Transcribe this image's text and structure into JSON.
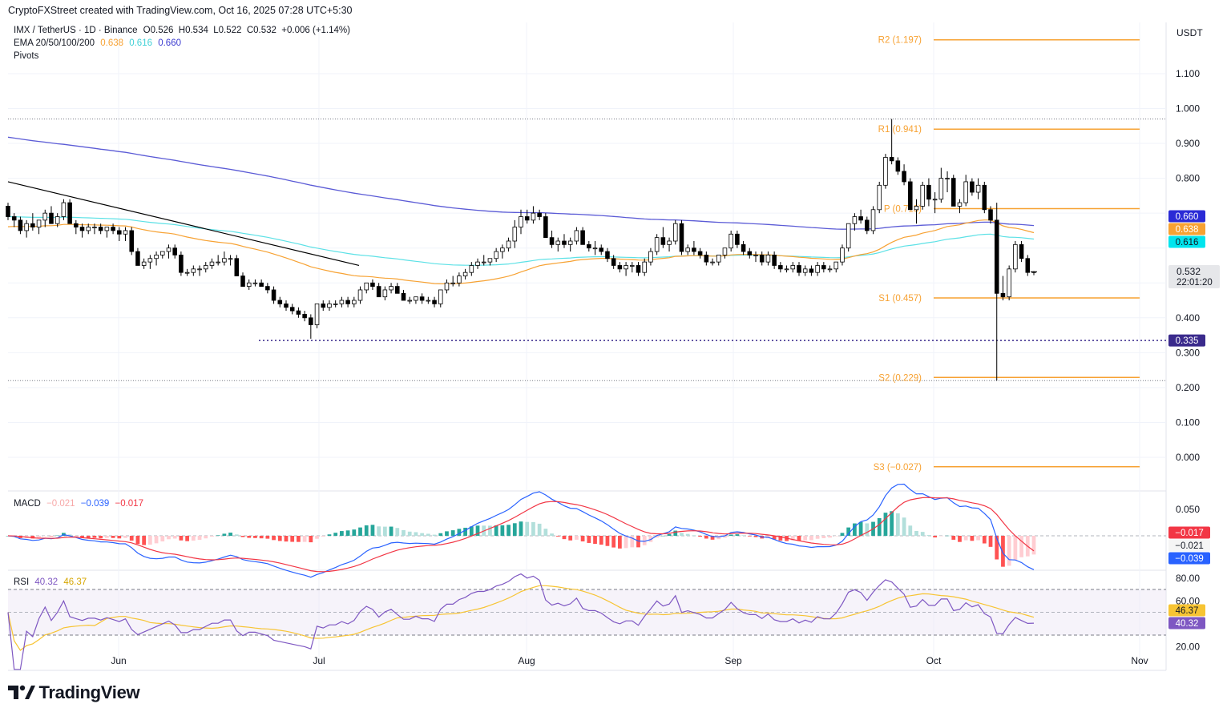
{
  "header": {
    "credit": "CryptoFXStreet created with TradingView.com, Oct 16, 2025 07:28 UTC+5:30"
  },
  "legend": {
    "symbol": "IMX / TetherUS · 1D · Binance",
    "ohlc": "O0.526  H0.534  L0.522  C0.532  +0.006 (+1.14%)",
    "ema_label": "EMA 20/50/100/200",
    "ema_values": [
      "0.638",
      "0.616",
      "0.660"
    ],
    "pivots_label": "Pivots"
  },
  "currency": "USDT",
  "price_axis_ticks": [
    "1.100",
    "1.000",
    "0.900",
    "0.800",
    "0.400",
    "0.300",
    "0.200",
    "0.100",
    "0.000"
  ],
  "time_axis_labels": [
    "Jun",
    "Jul",
    "Aug",
    "Sep",
    "Oct",
    "Nov"
  ],
  "pivot_labels": [
    "R2 (1.197)",
    "R1 (0.941)",
    "P (0.713)",
    "S1 (0.457)",
    "S2 (0.229)",
    "S3 (−0.027)"
  ],
  "price_tags": {
    "ema200": "0.660",
    "ema20": "0.638",
    "ema50": "0.616",
    "last": "0.532",
    "countdown": "22:01:20",
    "low_marker": "0.335"
  },
  "macd": {
    "label": "MACD",
    "values": [
      "−0.021",
      "−0.039",
      "−0.017"
    ],
    "axis_ticks": [
      "0.050"
    ],
    "tags": [
      "−0.017",
      "−0.021",
      "−0.039"
    ]
  },
  "rsi": {
    "label": "RSI",
    "values": [
      "40.32",
      "46.37"
    ],
    "axis_ticks": [
      "80.00",
      "60.00",
      "20.00"
    ],
    "tags": [
      "46.37",
      "40.32"
    ]
  },
  "footer": {
    "brand": "TradingView"
  },
  "colors": {
    "up": "#ffffff",
    "down": "#000000",
    "ema20": "#f7a233",
    "ema50": "#5ce1e6",
    "ema200": "#5b5bd6",
    "pivot": "#f7a233",
    "macd": "#2962ff",
    "signal": "#f23645",
    "rsi": "#7e57c2",
    "rsi_ma": "#f7c433",
    "trend": "#000000"
  },
  "chart_data": {
    "type": "candlestick",
    "title": "IMX / TetherUS · 1D · Binance",
    "x_labels": [
      "Jun",
      "Jul",
      "Aug",
      "Sep",
      "Oct",
      "Nov"
    ],
    "y_range": [
      -0.1,
      1.25
    ],
    "pivots": {
      "R2": 1.197,
      "R1": 0.941,
      "P": 0.713,
      "S1": 0.457,
      "S2": 0.229,
      "S3": -0.027
    },
    "horizontal_levels": [
      0.335,
      0.97,
      0.22
    ],
    "trendline": [
      [
        0,
        0.79
      ],
      [
        101,
        0.55
      ]
    ],
    "candles": [
      [
        0.72,
        0.73,
        0.68,
        0.69
      ],
      [
        0.69,
        0.7,
        0.66,
        0.68
      ],
      [
        0.68,
        0.69,
        0.64,
        0.65
      ],
      [
        0.65,
        0.68,
        0.63,
        0.67
      ],
      [
        0.67,
        0.7,
        0.65,
        0.66
      ],
      [
        0.66,
        0.68,
        0.64,
        0.68
      ],
      [
        0.68,
        0.71,
        0.66,
        0.7
      ],
      [
        0.7,
        0.72,
        0.67,
        0.67
      ],
      [
        0.67,
        0.7,
        0.66,
        0.69
      ],
      [
        0.69,
        0.74,
        0.68,
        0.73
      ],
      [
        0.73,
        0.74,
        0.67,
        0.67
      ],
      [
        0.67,
        0.68,
        0.64,
        0.66
      ],
      [
        0.66,
        0.67,
        0.63,
        0.65
      ],
      [
        0.65,
        0.67,
        0.64,
        0.66
      ],
      [
        0.66,
        0.67,
        0.64,
        0.66
      ],
      [
        0.66,
        0.67,
        0.64,
        0.65
      ],
      [
        0.65,
        0.66,
        0.63,
        0.66
      ],
      [
        0.66,
        0.67,
        0.64,
        0.65
      ],
      [
        0.65,
        0.66,
        0.62,
        0.64
      ],
      [
        0.64,
        0.66,
        0.62,
        0.65
      ],
      [
        0.65,
        0.66,
        0.58,
        0.59
      ],
      [
        0.59,
        0.6,
        0.55,
        0.55
      ],
      [
        0.55,
        0.57,
        0.54,
        0.56
      ],
      [
        0.56,
        0.58,
        0.54,
        0.57
      ],
      [
        0.57,
        0.59,
        0.55,
        0.58
      ],
      [
        0.58,
        0.59,
        0.57,
        0.59
      ],
      [
        0.59,
        0.61,
        0.57,
        0.6
      ],
      [
        0.6,
        0.61,
        0.57,
        0.58
      ],
      [
        0.58,
        0.59,
        0.52,
        0.53
      ],
      [
        0.53,
        0.54,
        0.52,
        0.53
      ],
      [
        0.53,
        0.55,
        0.52,
        0.54
      ],
      [
        0.54,
        0.55,
        0.52,
        0.54
      ],
      [
        0.54,
        0.56,
        0.53,
        0.55
      ],
      [
        0.55,
        0.57,
        0.54,
        0.56
      ],
      [
        0.56,
        0.58,
        0.55,
        0.56
      ],
      [
        0.56,
        0.59,
        0.55,
        0.57
      ],
      [
        0.57,
        0.58,
        0.55,
        0.57
      ],
      [
        0.57,
        0.58,
        0.52,
        0.52
      ],
      [
        0.52,
        0.53,
        0.49,
        0.49
      ],
      [
        0.49,
        0.51,
        0.48,
        0.5
      ],
      [
        0.5,
        0.51,
        0.49,
        0.5
      ],
      [
        0.5,
        0.51,
        0.49,
        0.49
      ],
      [
        0.49,
        0.5,
        0.47,
        0.48
      ],
      [
        0.48,
        0.49,
        0.44,
        0.45
      ],
      [
        0.45,
        0.46,
        0.43,
        0.44
      ],
      [
        0.44,
        0.45,
        0.42,
        0.43
      ],
      [
        0.43,
        0.44,
        0.41,
        0.42
      ],
      [
        0.42,
        0.43,
        0.4,
        0.41
      ],
      [
        0.41,
        0.42,
        0.39,
        0.4
      ],
      [
        0.4,
        0.41,
        0.34,
        0.38
      ],
      [
        0.38,
        0.44,
        0.37,
        0.44
      ],
      [
        0.44,
        0.45,
        0.42,
        0.43
      ],
      [
        0.43,
        0.45,
        0.42,
        0.44
      ],
      [
        0.44,
        0.45,
        0.43,
        0.44
      ],
      [
        0.44,
        0.46,
        0.43,
        0.45
      ],
      [
        0.45,
        0.46,
        0.43,
        0.44
      ],
      [
        0.44,
        0.46,
        0.43,
        0.45
      ],
      [
        0.45,
        0.49,
        0.44,
        0.48
      ],
      [
        0.48,
        0.5,
        0.47,
        0.5
      ],
      [
        0.5,
        0.51,
        0.48,
        0.49
      ],
      [
        0.49,
        0.5,
        0.46,
        0.46
      ],
      [
        0.46,
        0.49,
        0.45,
        0.48
      ],
      [
        0.48,
        0.5,
        0.47,
        0.49
      ],
      [
        0.49,
        0.5,
        0.47,
        0.47
      ],
      [
        0.47,
        0.48,
        0.45,
        0.45
      ],
      [
        0.45,
        0.46,
        0.44,
        0.45
      ],
      [
        0.45,
        0.46,
        0.44,
        0.46
      ],
      [
        0.46,
        0.47,
        0.44,
        0.45
      ],
      [
        0.45,
        0.46,
        0.44,
        0.45
      ],
      [
        0.45,
        0.46,
        0.43,
        0.44
      ],
      [
        0.44,
        0.48,
        0.43,
        0.48
      ],
      [
        0.48,
        0.51,
        0.47,
        0.5
      ],
      [
        0.5,
        0.52,
        0.49,
        0.5
      ],
      [
        0.5,
        0.53,
        0.49,
        0.52
      ],
      [
        0.52,
        0.54,
        0.51,
        0.53
      ],
      [
        0.53,
        0.56,
        0.52,
        0.55
      ],
      [
        0.55,
        0.57,
        0.54,
        0.56
      ],
      [
        0.56,
        0.58,
        0.55,
        0.56
      ],
      [
        0.56,
        0.57,
        0.55,
        0.57
      ],
      [
        0.57,
        0.6,
        0.56,
        0.59
      ],
      [
        0.59,
        0.61,
        0.57,
        0.6
      ],
      [
        0.6,
        0.63,
        0.59,
        0.62
      ],
      [
        0.62,
        0.68,
        0.6,
        0.66
      ],
      [
        0.66,
        0.71,
        0.64,
        0.69
      ],
      [
        0.69,
        0.71,
        0.67,
        0.68
      ],
      [
        0.68,
        0.72,
        0.67,
        0.7
      ],
      [
        0.7,
        0.71,
        0.68,
        0.69
      ],
      [
        0.69,
        0.7,
        0.63,
        0.63
      ],
      [
        0.63,
        0.65,
        0.6,
        0.61
      ],
      [
        0.61,
        0.63,
        0.59,
        0.62
      ],
      [
        0.62,
        0.64,
        0.6,
        0.61
      ],
      [
        0.61,
        0.63,
        0.59,
        0.62
      ],
      [
        0.62,
        0.66,
        0.61,
        0.65
      ],
      [
        0.65,
        0.66,
        0.61,
        0.61
      ],
      [
        0.61,
        0.62,
        0.59,
        0.6
      ],
      [
        0.6,
        0.62,
        0.58,
        0.6
      ],
      [
        0.6,
        0.61,
        0.58,
        0.59
      ],
      [
        0.59,
        0.6,
        0.56,
        0.57
      ],
      [
        0.57,
        0.58,
        0.54,
        0.55
      ],
      [
        0.55,
        0.56,
        0.53,
        0.54
      ],
      [
        0.54,
        0.56,
        0.52,
        0.55
      ],
      [
        0.55,
        0.56,
        0.53,
        0.55
      ],
      [
        0.55,
        0.56,
        0.52,
        0.53
      ],
      [
        0.53,
        0.57,
        0.52,
        0.56
      ],
      [
        0.56,
        0.6,
        0.55,
        0.59
      ],
      [
        0.59,
        0.64,
        0.58,
        0.63
      ],
      [
        0.63,
        0.66,
        0.6,
        0.61
      ],
      [
        0.61,
        0.63,
        0.59,
        0.62
      ],
      [
        0.62,
        0.68,
        0.61,
        0.67
      ],
      [
        0.67,
        0.68,
        0.58,
        0.59
      ],
      [
        0.59,
        0.61,
        0.58,
        0.6
      ],
      [
        0.6,
        0.62,
        0.58,
        0.59
      ],
      [
        0.59,
        0.6,
        0.57,
        0.58
      ],
      [
        0.58,
        0.59,
        0.55,
        0.56
      ],
      [
        0.56,
        0.57,
        0.55,
        0.56
      ],
      [
        0.56,
        0.58,
        0.55,
        0.58
      ],
      [
        0.58,
        0.6,
        0.57,
        0.6
      ],
      [
        0.6,
        0.65,
        0.59,
        0.64
      ],
      [
        0.64,
        0.65,
        0.6,
        0.61
      ],
      [
        0.61,
        0.62,
        0.58,
        0.59
      ],
      [
        0.59,
        0.6,
        0.57,
        0.58
      ],
      [
        0.58,
        0.59,
        0.56,
        0.58
      ],
      [
        0.58,
        0.59,
        0.55,
        0.56
      ],
      [
        0.56,
        0.59,
        0.55,
        0.58
      ],
      [
        0.58,
        0.59,
        0.54,
        0.55
      ],
      [
        0.55,
        0.56,
        0.53,
        0.54
      ],
      [
        0.54,
        0.55,
        0.53,
        0.54
      ],
      [
        0.54,
        0.56,
        0.53,
        0.55
      ],
      [
        0.55,
        0.56,
        0.52,
        0.53
      ],
      [
        0.53,
        0.55,
        0.52,
        0.54
      ],
      [
        0.54,
        0.55,
        0.52,
        0.53
      ],
      [
        0.53,
        0.56,
        0.52,
        0.55
      ],
      [
        0.55,
        0.56,
        0.53,
        0.54
      ],
      [
        0.54,
        0.55,
        0.53,
        0.54
      ],
      [
        0.54,
        0.56,
        0.53,
        0.56
      ],
      [
        0.56,
        0.61,
        0.55,
        0.6
      ],
      [
        0.6,
        0.67,
        0.59,
        0.67
      ],
      [
        0.67,
        0.7,
        0.65,
        0.69
      ],
      [
        0.69,
        0.71,
        0.67,
        0.68
      ],
      [
        0.68,
        0.69,
        0.64,
        0.65
      ],
      [
        0.65,
        0.72,
        0.64,
        0.71
      ],
      [
        0.71,
        0.79,
        0.7,
        0.78
      ],
      [
        0.78,
        0.87,
        0.77,
        0.86
      ],
      [
        0.86,
        0.97,
        0.84,
        0.85
      ],
      [
        0.85,
        0.86,
        0.81,
        0.82
      ],
      [
        0.82,
        0.84,
        0.78,
        0.79
      ],
      [
        0.79,
        0.8,
        0.71,
        0.71
      ],
      [
        0.71,
        0.74,
        0.67,
        0.72
      ],
      [
        0.72,
        0.79,
        0.71,
        0.78
      ],
      [
        0.78,
        0.8,
        0.72,
        0.74
      ],
      [
        0.74,
        0.76,
        0.7,
        0.74
      ],
      [
        0.74,
        0.83,
        0.73,
        0.8
      ],
      [
        0.8,
        0.82,
        0.76,
        0.8
      ],
      [
        0.8,
        0.81,
        0.72,
        0.72
      ],
      [
        0.72,
        0.74,
        0.7,
        0.73
      ],
      [
        0.73,
        0.81,
        0.72,
        0.79
      ],
      [
        0.79,
        0.8,
        0.75,
        0.76
      ],
      [
        0.76,
        0.8,
        0.74,
        0.78
      ],
      [
        0.78,
        0.79,
        0.7,
        0.71
      ],
      [
        0.71,
        0.72,
        0.67,
        0.68
      ],
      [
        0.68,
        0.73,
        0.22,
        0.47
      ],
      [
        0.47,
        0.52,
        0.45,
        0.46
      ],
      [
        0.46,
        0.55,
        0.45,
        0.54
      ],
      [
        0.54,
        0.62,
        0.53,
        0.61
      ],
      [
        0.61,
        0.62,
        0.56,
        0.57
      ],
      [
        0.57,
        0.58,
        0.52,
        0.53
      ],
      [
        0.53,
        0.534,
        0.522,
        0.532
      ]
    ],
    "series": [
      {
        "name": "EMA 20",
        "last": 0.638
      },
      {
        "name": "EMA 50",
        "last": 0.616
      },
      {
        "name": "EMA 200",
        "last": 0.66
      }
    ],
    "macd": {
      "histogram_last": -0.021,
      "macd_last": -0.039,
      "signal_last": -0.017
    },
    "rsi": {
      "rsi_last": 40.32,
      "ma_last": 46.37,
      "bands": [
        70,
        30
      ]
    }
  }
}
